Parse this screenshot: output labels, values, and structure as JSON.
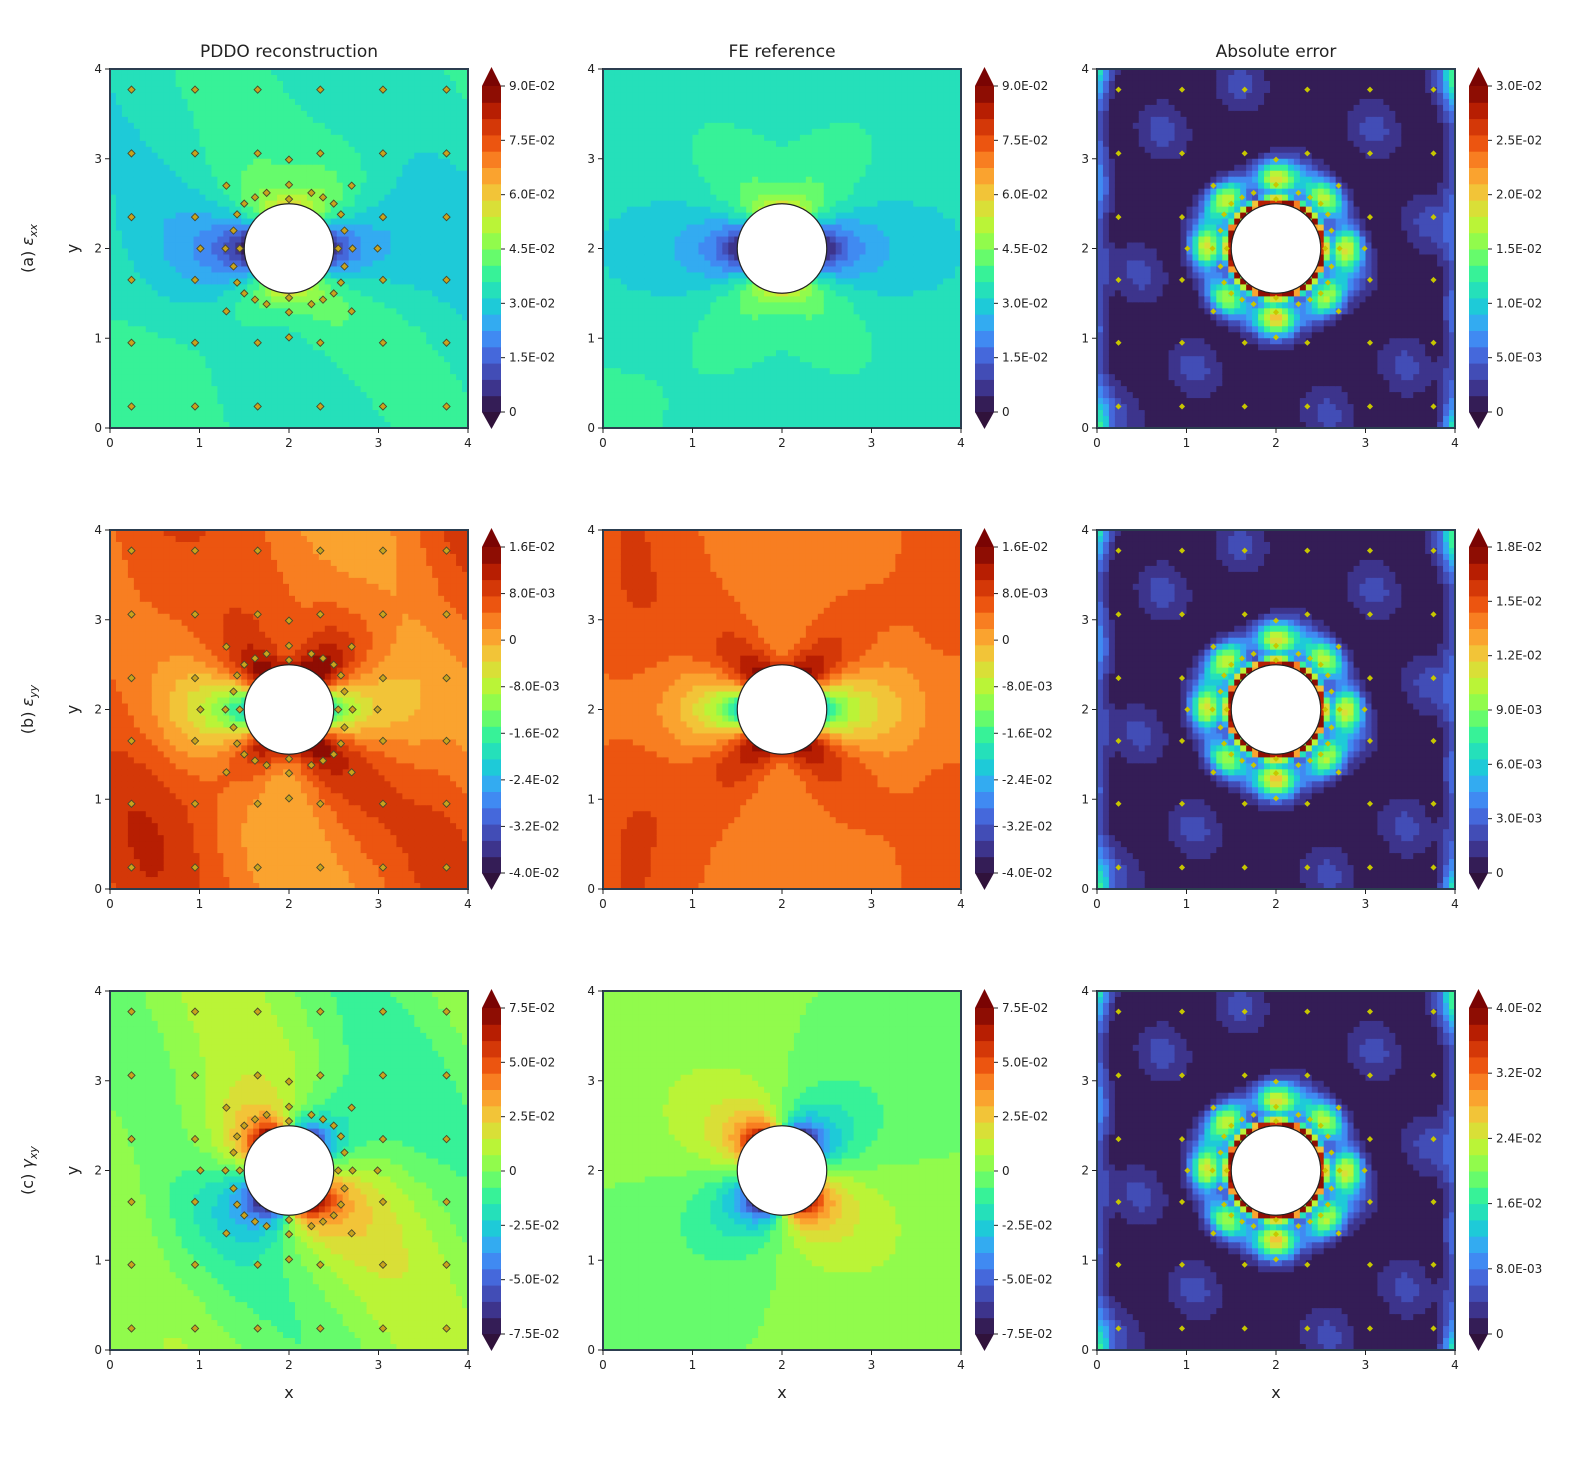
{
  "colors": {
    "colormap_field": [
      "#30123b",
      "#3e3895",
      "#4662d7",
      "#3e9bfe",
      "#1bcfd4",
      "#2ff09f",
      "#7dff56",
      "#c1f334",
      "#f1ca3a",
      "#fe922a",
      "#ea4e0d",
      "#be2102",
      "#7a0403"
    ],
    "colormap_error": [
      "#30123b",
      "#3e3895",
      "#4662d7",
      "#3e9bfe",
      "#1bcfd4",
      "#2ff09f",
      "#7dff56",
      "#c1f334",
      "#f1ca3a",
      "#fe922a",
      "#ea4e0d",
      "#be2102",
      "#7a0403"
    ],
    "axes_frame": "#2c3e50",
    "marker_fill": "#c7c700",
    "marker_edge": "#4a4a2a",
    "hole_fill": "#ffffff"
  },
  "column_titles": [
    "PDDO reconstruction",
    "FE reference",
    "Absolute error"
  ],
  "rows": [
    {
      "label_prefix": "(a)",
      "symbol": "ε",
      "subscript": "xx",
      "ylabel": "y"
    },
    {
      "label_prefix": "(b)",
      "symbol": "ε",
      "subscript": "yy",
      "ylabel": "y"
    },
    {
      "label_prefix": "(c)",
      "symbol": "γ",
      "subscript": "xy",
      "ylabel": "y"
    }
  ],
  "xlabel": "x",
  "chart_data": [
    {
      "type": "heatmap",
      "row": "a",
      "field": "epsilon_xx",
      "domain": {
        "xlim": [
          0,
          4
        ],
        "ylim": [
          0,
          4
        ],
        "hole_center": [
          2,
          2
        ],
        "hole_radius": 0.5
      },
      "xticks": [
        "0",
        "1",
        "2",
        "3",
        "4"
      ],
      "yticks": [
        "0",
        "1",
        "2",
        "3",
        "4"
      ],
      "panels": [
        {
          "name": "PDDO reconstruction",
          "vmin": 0,
          "vmax": 0.09,
          "background": 0.034,
          "shows_markers": true,
          "marker_style": "large",
          "colorbar_ticks": [
            {
              "value": 0,
              "label": "0"
            },
            {
              "value": 0.015,
              "label": "1.5E-02"
            },
            {
              "value": 0.03,
              "label": "3.0E-02"
            },
            {
              "value": 0.045,
              "label": "4.5E-02"
            },
            {
              "value": 0.06,
              "label": "6.0E-02"
            },
            {
              "value": 0.075,
              "label": "7.5E-02"
            },
            {
              "value": 0.09,
              "label": "9.0E-02"
            }
          ]
        },
        {
          "name": "FE reference",
          "vmin": 0,
          "vmax": 0.09,
          "background": 0.033,
          "shows_markers": false,
          "colorbar_ticks": [
            {
              "value": 0,
              "label": "0"
            },
            {
              "value": 0.015,
              "label": "1.5E-02"
            },
            {
              "value": 0.03,
              "label": "3.0E-02"
            },
            {
              "value": 0.045,
              "label": "4.5E-02"
            },
            {
              "value": 0.06,
              "label": "6.0E-02"
            },
            {
              "value": 0.075,
              "label": "7.5E-02"
            },
            {
              "value": 0.09,
              "label": "9.0E-02"
            }
          ]
        },
        {
          "name": "Absolute error",
          "vmin": 0,
          "vmax": 0.03,
          "background": 0.0008,
          "shows_markers": true,
          "marker_style": "small",
          "colorbar_ticks": [
            {
              "value": 0,
              "label": "0"
            },
            {
              "value": 0.005,
              "label": "5.0E-03"
            },
            {
              "value": 0.01,
              "label": "1.0E-02"
            },
            {
              "value": 0.015,
              "label": "1.5E-02"
            },
            {
              "value": 0.02,
              "label": "2.0E-02"
            },
            {
              "value": 0.025,
              "label": "2.5E-02"
            },
            {
              "value": 0.03,
              "label": "3.0E-02"
            }
          ]
        }
      ]
    },
    {
      "type": "heatmap",
      "row": "b",
      "field": "epsilon_yy",
      "domain": {
        "xlim": [
          0,
          4
        ],
        "ylim": [
          0,
          4
        ],
        "hole_center": [
          2,
          2
        ],
        "hole_radius": 0.5
      },
      "xticks": [
        "0",
        "1",
        "2",
        "3",
        "4"
      ],
      "yticks": [
        "0",
        "1",
        "2",
        "3",
        "4"
      ],
      "panels": [
        {
          "name": "PDDO reconstruction",
          "vmin": -0.04,
          "vmax": 0.016,
          "background": 0.004,
          "shows_markers": true,
          "marker_style": "large",
          "colorbar_ticks": [
            {
              "value": -0.04,
              "label": "-4.0E-02"
            },
            {
              "value": -0.032,
              "label": "-3.2E-02"
            },
            {
              "value": -0.024,
              "label": "-2.4E-02"
            },
            {
              "value": -0.016,
              "label": "-1.6E-02"
            },
            {
              "value": -0.008,
              "label": "-8.0E-03"
            },
            {
              "value": 0,
              "label": "0"
            },
            {
              "value": 0.008,
              "label": "8.0E-03"
            },
            {
              "value": 0.016,
              "label": "1.6E-02"
            }
          ]
        },
        {
          "name": "FE reference",
          "vmin": -0.04,
          "vmax": 0.016,
          "background": 0.003,
          "shows_markers": false,
          "colorbar_ticks": [
            {
              "value": -0.04,
              "label": "-4.0E-02"
            },
            {
              "value": -0.032,
              "label": "-3.2E-02"
            },
            {
              "value": -0.024,
              "label": "-2.4E-02"
            },
            {
              "value": -0.016,
              "label": "-1.6E-02"
            },
            {
              "value": -0.008,
              "label": "-8.0E-03"
            },
            {
              "value": 0,
              "label": "0"
            },
            {
              "value": 0.008,
              "label": "8.0E-03"
            },
            {
              "value": 0.016,
              "label": "1.6E-02"
            }
          ]
        },
        {
          "name": "Absolute error",
          "vmin": 0,
          "vmax": 0.018,
          "background": 0.0006,
          "shows_markers": true,
          "marker_style": "small",
          "colorbar_ticks": [
            {
              "value": 0,
              "label": "0"
            },
            {
              "value": 0.003,
              "label": "3.0E-03"
            },
            {
              "value": 0.006,
              "label": "6.0E-03"
            },
            {
              "value": 0.009,
              "label": "9.0E-03"
            },
            {
              "value": 0.012,
              "label": "1.2E-02"
            },
            {
              "value": 0.015,
              "label": "1.5E-02"
            },
            {
              "value": 0.018,
              "label": "1.8E-02"
            }
          ]
        }
      ]
    },
    {
      "type": "heatmap",
      "row": "c",
      "field": "gamma_xy",
      "domain": {
        "xlim": [
          0,
          4
        ],
        "ylim": [
          0,
          4
        ],
        "hole_center": [
          2,
          2
        ],
        "hole_radius": 0.5
      },
      "xticks": [
        "0",
        "1",
        "2",
        "3",
        "4"
      ],
      "yticks": [
        "0",
        "1",
        "2",
        "3",
        "4"
      ],
      "panels": [
        {
          "name": "PDDO reconstruction",
          "vmin": -0.075,
          "vmax": 0.075,
          "background": 0.001,
          "shows_markers": true,
          "marker_style": "large",
          "colorbar_ticks": [
            {
              "value": -0.075,
              "label": "-7.5E-02"
            },
            {
              "value": -0.05,
              "label": "-5.0E-02"
            },
            {
              "value": -0.025,
              "label": "-2.5E-02"
            },
            {
              "value": 0,
              "label": "0"
            },
            {
              "value": 0.025,
              "label": "2.5E-02"
            },
            {
              "value": 0.05,
              "label": "5.0E-02"
            },
            {
              "value": 0.075,
              "label": "7.5E-02"
            }
          ]
        },
        {
          "name": "FE reference",
          "vmin": -0.075,
          "vmax": 0.075,
          "background": 0.001,
          "shows_markers": false,
          "colorbar_ticks": [
            {
              "value": -0.075,
              "label": "-7.5E-02"
            },
            {
              "value": -0.05,
              "label": "-5.0E-02"
            },
            {
              "value": -0.025,
              "label": "-2.5E-02"
            },
            {
              "value": 0,
              "label": "0"
            },
            {
              "value": 0.025,
              "label": "2.5E-02"
            },
            {
              "value": 0.05,
              "label": "5.0E-02"
            },
            {
              "value": 0.075,
              "label": "7.5E-02"
            }
          ]
        },
        {
          "name": "Absolute error",
          "vmin": 0,
          "vmax": 0.04,
          "background": 0.0012,
          "shows_markers": true,
          "marker_style": "small",
          "colorbar_ticks": [
            {
              "value": 0,
              "label": "0"
            },
            {
              "value": 0.008,
              "label": "8.0E-03"
            },
            {
              "value": 0.016,
              "label": "1.6E-02"
            },
            {
              "value": 0.024,
              "label": "2.4E-02"
            },
            {
              "value": 0.032,
              "label": "3.2E-02"
            },
            {
              "value": 0.04,
              "label": "4.0E-02"
            }
          ]
        }
      ]
    }
  ],
  "sensor_points": [
    [
      0.24,
      3.77
    ],
    [
      0.95,
      3.77
    ],
    [
      1.65,
      3.77
    ],
    [
      2.35,
      3.77
    ],
    [
      3.05,
      3.77
    ],
    [
      3.76,
      3.77
    ],
    [
      0.24,
      3.06
    ],
    [
      0.95,
      3.06
    ],
    [
      1.65,
      3.06
    ],
    [
      2.35,
      3.06
    ],
    [
      3.05,
      3.06
    ],
    [
      3.76,
      3.06
    ],
    [
      0.24,
      2.35
    ],
    [
      0.95,
      2.35
    ],
    [
      3.05,
      2.35
    ],
    [
      3.76,
      2.35
    ],
    [
      0.24,
      1.65
    ],
    [
      0.95,
      1.65
    ],
    [
      3.05,
      1.65
    ],
    [
      3.76,
      1.65
    ],
    [
      0.24,
      0.95
    ],
    [
      0.95,
      0.95
    ],
    [
      1.65,
      0.95
    ],
    [
      2.35,
      0.95
    ],
    [
      3.05,
      0.95
    ],
    [
      3.76,
      0.95
    ],
    [
      0.24,
      0.24
    ],
    [
      0.95,
      0.24
    ],
    [
      1.65,
      0.24
    ],
    [
      2.35,
      0.24
    ],
    [
      3.05,
      0.24
    ],
    [
      3.76,
      0.24
    ],
    [
      2.0,
      2.99
    ],
    [
      2.0,
      2.71
    ],
    [
      2.0,
      2.55
    ],
    [
      2.0,
      1.45
    ],
    [
      2.0,
      1.29
    ],
    [
      2.0,
      1.01
    ],
    [
      1.01,
      2.0
    ],
    [
      1.29,
      2.0
    ],
    [
      1.45,
      2.0
    ],
    [
      2.55,
      2.0
    ],
    [
      2.71,
      2.0
    ],
    [
      2.99,
      2.0
    ],
    [
      1.3,
      2.7
    ],
    [
      2.7,
      2.7
    ],
    [
      1.3,
      1.3
    ],
    [
      2.7,
      1.3
    ],
    [
      1.5,
      2.5
    ],
    [
      2.5,
      2.5
    ],
    [
      1.5,
      1.5
    ],
    [
      2.5,
      1.5
    ],
    [
      1.62,
      2.57
    ],
    [
      2.38,
      2.57
    ],
    [
      1.62,
      1.43
    ],
    [
      2.38,
      1.43
    ],
    [
      1.42,
      2.38
    ],
    [
      2.58,
      2.38
    ],
    [
      1.42,
      1.62
    ],
    [
      2.58,
      1.62
    ],
    [
      1.38,
      2.2
    ],
    [
      2.62,
      2.2
    ],
    [
      1.38,
      1.8
    ],
    [
      2.62,
      1.8
    ],
    [
      1.75,
      2.62
    ],
    [
      2.25,
      2.62
    ],
    [
      1.75,
      1.38
    ],
    [
      2.25,
      1.38
    ]
  ]
}
